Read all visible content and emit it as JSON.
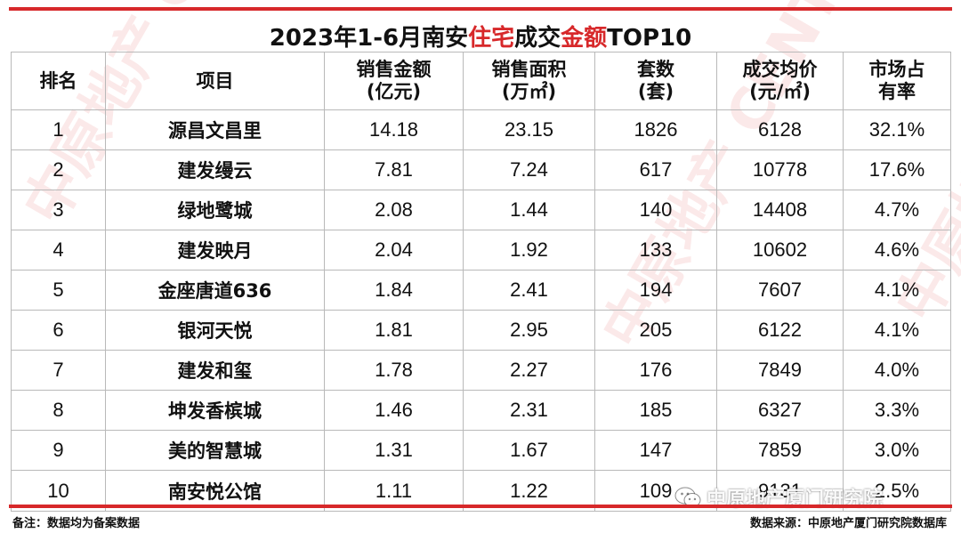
{
  "title": {
    "part1": "2023年1-6月南安",
    "hl1": "住宅",
    "part2": "成交",
    "hl2": "金额",
    "part3": "TOP10"
  },
  "colors": {
    "accent": "#d7282a"
  },
  "table": {
    "headers": [
      "排名",
      "项目",
      "销售金额\n(亿元)",
      "销售面积\n(万㎡)",
      "套数\n(套)",
      "成交均价\n(元/㎡)",
      "市场占\n有率"
    ],
    "rows": [
      [
        "1",
        "源昌文昌里",
        "14.18",
        "23.15",
        "1826",
        "6128",
        "32.1%"
      ],
      [
        "2",
        "建发缦云",
        "7.81",
        "7.24",
        "617",
        "10778",
        "17.6%"
      ],
      [
        "3",
        "绿地鹭城",
        "2.08",
        "1.44",
        "140",
        "14408",
        "4.7%"
      ],
      [
        "4",
        "建发映月",
        "2.04",
        "1.92",
        "133",
        "10602",
        "4.6%"
      ],
      [
        "5",
        "金座唐道636",
        "1.84",
        "2.41",
        "194",
        "7607",
        "4.1%"
      ],
      [
        "6",
        "银河天悦",
        "1.81",
        "2.95",
        "205",
        "6122",
        "4.1%"
      ],
      [
        "7",
        "建发和玺",
        "1.78",
        "2.27",
        "176",
        "7849",
        "4.0%"
      ],
      [
        "8",
        "坤发香槟城",
        "1.46",
        "2.31",
        "185",
        "6327",
        "3.3%"
      ],
      [
        "9",
        "美的智慧城",
        "1.31",
        "1.67",
        "147",
        "7859",
        "3.0%"
      ],
      [
        "10",
        "南安悦公馆",
        "1.11",
        "1.22",
        "109",
        "9131",
        "2.5%"
      ]
    ]
  },
  "footer": {
    "note": "备注：数据均为备案数据",
    "source": "数据来源：中原地产厦门研究院数据库"
  },
  "watermark": {
    "text": "中原地产 CENTALINE PROPERTY",
    "wechat_label": "中原地产厦门研究院",
    "icon": "wechat-icon"
  }
}
